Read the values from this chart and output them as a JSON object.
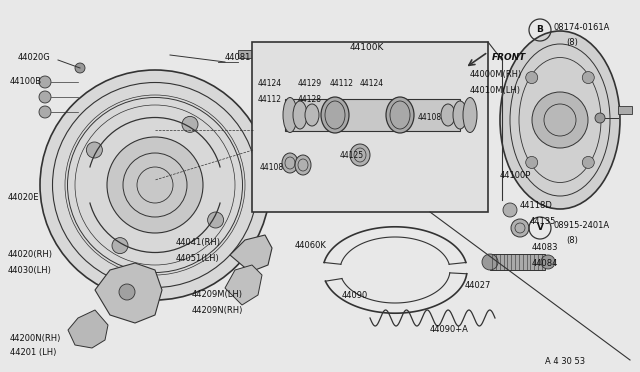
{
  "bg_color": "#e8e8e8",
  "line_color": "#333333",
  "text_color": "#111111",
  "figsize": [
    6.4,
    3.72
  ],
  "dpi": 100,
  "xlim": [
    0,
    640
  ],
  "ylim": [
    0,
    372
  ]
}
